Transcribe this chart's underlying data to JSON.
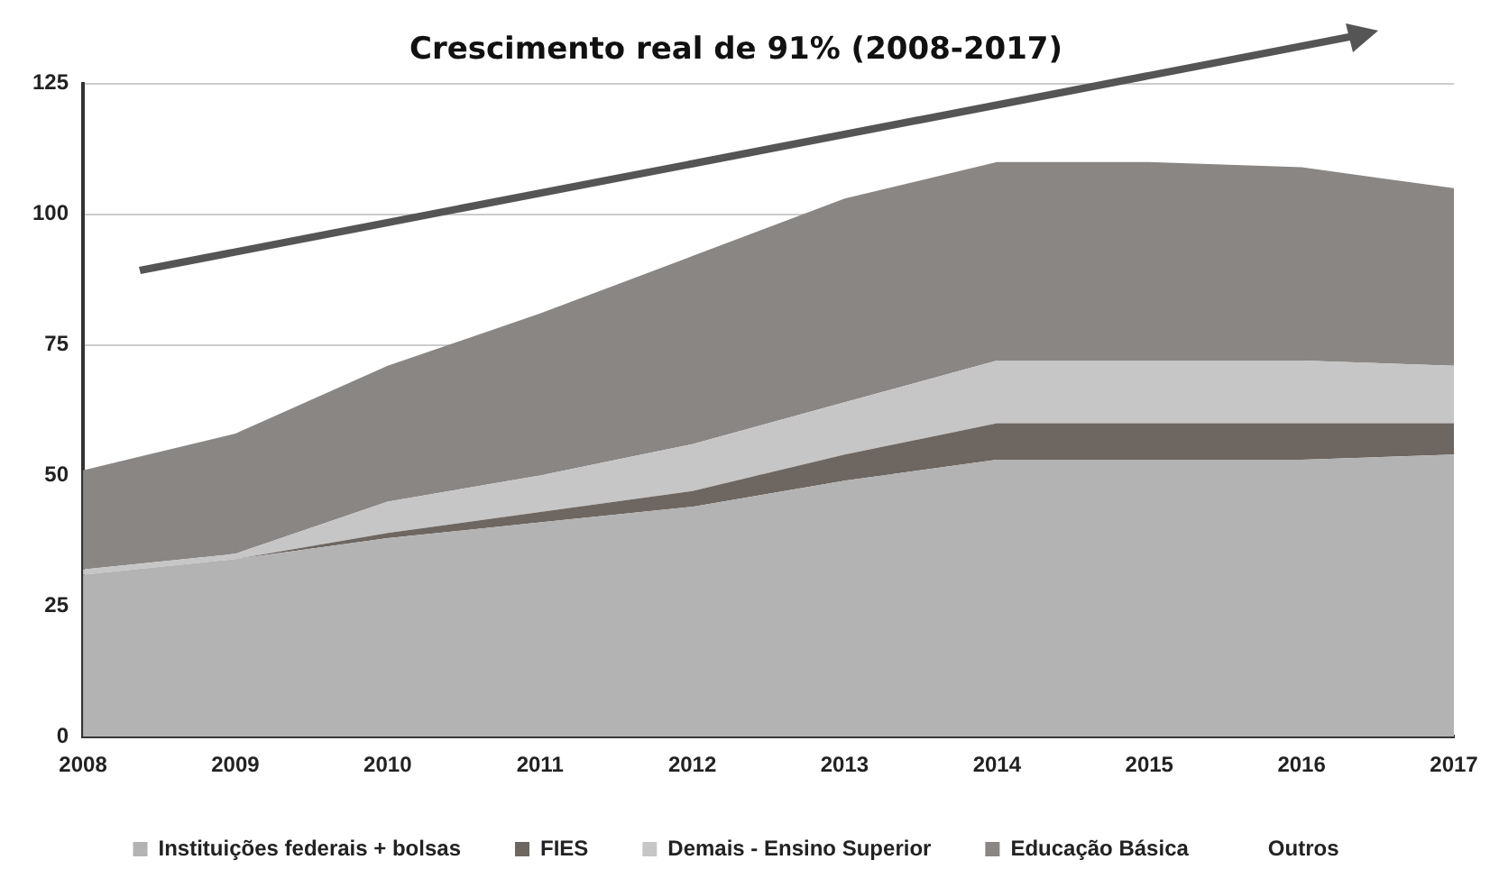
{
  "chart_data": {
    "type": "area",
    "title": "Crescimento real de 91% (2008-2017)",
    "categories": [
      "2008",
      "2009",
      "2010",
      "2011",
      "2012",
      "2013",
      "2014",
      "2015",
      "2016",
      "2017"
    ],
    "stacked": true,
    "series": [
      {
        "name": "Instituições federais + bolsas",
        "color": "#b3b3b3",
        "values": [
          31,
          34,
          38,
          41,
          44,
          49,
          53,
          53,
          53,
          54
        ]
      },
      {
        "name": "FIES",
        "color": "#6e6660",
        "values": [
          0,
          0,
          1,
          2,
          3,
          5,
          7,
          7,
          7,
          6
        ]
      },
      {
        "name": "Demais - Ensino Superior",
        "color": "#c6c6c6",
        "values": [
          1,
          1,
          6,
          7,
          9,
          10,
          12,
          12,
          12,
          11
        ]
      },
      {
        "name": "Educação Básica",
        "color": "#8a8684",
        "values": [
          19,
          23,
          26,
          31,
          36,
          39,
          38,
          38,
          37,
          34
        ]
      },
      {
        "name": "Outros",
        "values": [
          null,
          null,
          null,
          null,
          null,
          null,
          null,
          null,
          null,
          null
        ]
      }
    ],
    "ylim": [
      0,
      125
    ],
    "yticks": [
      0,
      25,
      50,
      75,
      100,
      125
    ],
    "grid": "y",
    "legend": "bottom"
  }
}
